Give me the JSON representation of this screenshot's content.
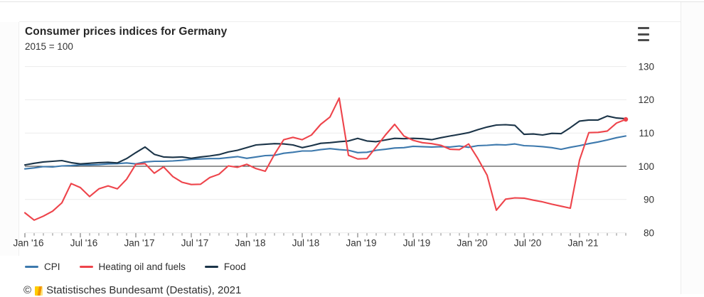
{
  "header": {
    "title": "Consumer prices indices for Germany",
    "subtitle": "2015 = 100"
  },
  "menu": {
    "icon": "hamburger-icon"
  },
  "chart_data": {
    "type": "line",
    "title": "Consumer prices indices for Germany",
    "subtitle": "2015 = 100",
    "grid": "horizontal",
    "legend_position": "bottom",
    "baseline_value": 100,
    "ylim": [
      80,
      130
    ],
    "y_ticks": [
      80,
      90,
      100,
      110,
      120,
      130
    ],
    "y_axis_side": "right",
    "n_points": 66,
    "x_major_every": 6,
    "x_tick_labels": [
      "Jan '16",
      "Jul '16",
      "Jan '17",
      "Jul '17",
      "Jan '18",
      "Jul '18",
      "Jan '19",
      "Jul '19",
      "Jan '20",
      "Jul '20",
      "Jan '21"
    ],
    "series": [
      {
        "name": "CPI",
        "color": "#3d79ad",
        "end_marker": false,
        "values": [
          99.2,
          99.5,
          99.9,
          99.8,
          100.1,
          100.2,
          100.4,
          100.4,
          100.5,
          100.7,
          100.8,
          101.0,
          100.7,
          101.3,
          101.5,
          101.5,
          101.6,
          101.8,
          102.1,
          102.2,
          102.3,
          102.3,
          102.6,
          102.9,
          102.4,
          102.8,
          103.2,
          103.3,
          103.9,
          104.2,
          104.6,
          104.6,
          105.0,
          105.3,
          105.0,
          104.8,
          104.1,
          104.2,
          104.8,
          105.1,
          105.5,
          105.6,
          106.0,
          105.9,
          105.8,
          105.9,
          105.8,
          106.1,
          105.7,
          106.2,
          106.3,
          106.5,
          106.4,
          106.7,
          106.2,
          106.1,
          105.9,
          105.6,
          105.1,
          105.7,
          106.2,
          106.8,
          107.3,
          107.9,
          108.6,
          109.1
        ]
      },
      {
        "name": "Heating oil and fuels",
        "color": "#ee444b",
        "end_marker": true,
        "values": [
          86.0,
          83.8,
          85.0,
          86.5,
          89.0,
          94.8,
          93.6,
          90.9,
          93.2,
          94.1,
          93.2,
          96.1,
          100.6,
          100.8,
          97.9,
          99.8,
          96.9,
          95.2,
          94.5,
          94.6,
          96.6,
          97.6,
          100.1,
          99.7,
          100.6,
          99.3,
          98.5,
          103.6,
          108.0,
          108.7,
          108.0,
          109.4,
          112.6,
          114.8,
          120.5,
          103.3,
          102.2,
          102.3,
          105.8,
          109.4,
          112.6,
          109.1,
          107.8,
          107.1,
          106.8,
          106.3,
          105.1,
          105.0,
          106.7,
          102.3,
          97.3,
          86.8,
          90.1,
          90.5,
          90.4,
          89.8,
          89.3,
          88.6,
          88.0,
          87.4,
          101.9,
          110.1,
          110.2,
          110.6,
          113.0,
          114.1
        ]
      },
      {
        "name": "Food",
        "color": "#1b3448",
        "end_marker": false,
        "values": [
          100.4,
          100.9,
          101.3,
          101.5,
          101.7,
          101.1,
          100.7,
          100.9,
          101.1,
          101.2,
          101.0,
          102.3,
          104.1,
          105.8,
          103.6,
          102.8,
          102.7,
          102.8,
          102.4,
          102.8,
          103.1,
          103.5,
          104.3,
          104.8,
          105.6,
          106.4,
          106.6,
          106.8,
          106.7,
          106.4,
          105.6,
          106.2,
          106.9,
          107.1,
          107.4,
          107.6,
          108.4,
          107.6,
          107.4,
          107.9,
          108.4,
          108.3,
          108.4,
          108.3,
          108.0,
          108.6,
          109.1,
          109.6,
          110.1,
          111.0,
          111.8,
          112.4,
          112.5,
          112.3,
          109.6,
          109.7,
          109.4,
          109.9,
          109.8,
          111.6,
          113.6,
          113.9,
          113.9,
          115.1,
          114.5,
          114.3
        ]
      }
    ],
    "colors": {
      "gridline": "#ececec",
      "baseline": "#2b2b2b",
      "tick": "#8a8a8a",
      "major_tick": "#666666",
      "axis_text": "#333333"
    }
  },
  "footer": {
    "copyright_prefix": "©",
    "logo": "destatis-logo",
    "text": "Statistisches Bundesamt (Destatis), 2021"
  }
}
